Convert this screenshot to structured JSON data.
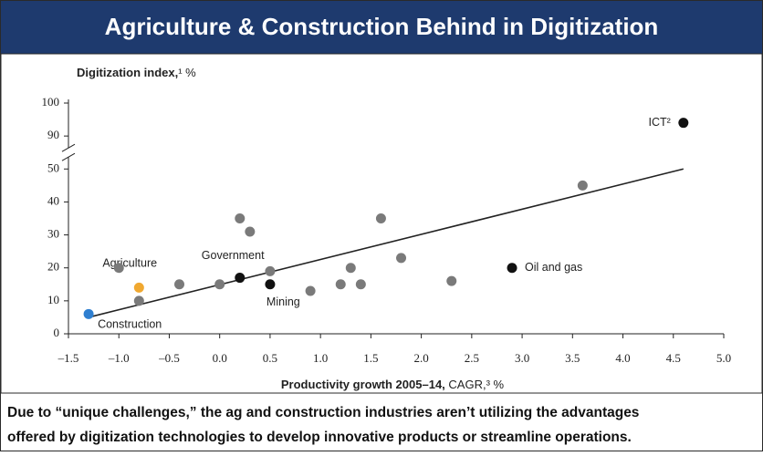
{
  "chart_data": {
    "type": "scatter",
    "title": "Agriculture & Construction Behind in Digitization",
    "ylabel": {
      "bold": "Digitization index,",
      "rest": "¹ %"
    },
    "xlabel": {
      "bold": "Productivity growth 2005–14,",
      "rest": " CAGR,³ %"
    },
    "caption": [
      "Due to “unique challenges,” the ag and construction industries aren’t utilizing the advantages",
      "offered by digitization technologies to develop innovative products or streamline operations."
    ],
    "x": [
      -1.3,
      -0.8,
      -1.0,
      -0.8,
      -0.4,
      0.0,
      0.2,
      0.3,
      0.2,
      0.5,
      0.5,
      0.9,
      1.2,
      1.3,
      1.4,
      1.6,
      1.8,
      2.3,
      2.9,
      3.6,
      4.6
    ],
    "values": [
      6,
      14,
      20,
      10,
      15,
      15,
      35,
      31,
      17,
      19,
      15,
      13,
      15,
      20,
      15,
      35,
      23,
      16,
      20,
      45,
      94
    ],
    "colors": [
      "#2f7fd0",
      "#f0a830",
      "#7a7a7a",
      "#7a7a7a",
      "#7a7a7a",
      "#7a7a7a",
      "#7a7a7a",
      "#7a7a7a",
      "#111111",
      "#7a7a7a",
      "#111111",
      "#7a7a7a",
      "#7a7a7a",
      "#7a7a7a",
      "#7a7a7a",
      "#7a7a7a",
      "#7a7a7a",
      "#7a7a7a",
      "#111111",
      "#7a7a7a",
      "#111111"
    ],
    "labels": [
      "Construction",
      "Agriculture",
      null,
      null,
      null,
      null,
      null,
      null,
      "Government",
      null,
      "Mining",
      null,
      null,
      null,
      null,
      null,
      null,
      null,
      "Oil and gas",
      null,
      "ICT²"
    ],
    "trendline": {
      "x": [
        -1.3,
        4.6
      ],
      "y": [
        5,
        52
      ]
    },
    "xlim": [
      -1.5,
      5.0
    ],
    "xticks": [
      {
        "value": -1.5,
        "label": "–1.5"
      },
      {
        "value": -1.0,
        "label": "–1.0"
      },
      {
        "value": -0.5,
        "label": "–0.5"
      },
      {
        "value": 0,
        "label": "0.0"
      },
      0.5,
      {
        "value": 1,
        "label": "1.0"
      },
      1.5,
      {
        "value": 2,
        "label": "2.0"
      },
      2.5,
      {
        "value": 3,
        "label": "3.0"
      },
      3.5,
      {
        "value": 4,
        "label": "4.0"
      },
      4.5,
      {
        "value": 5,
        "label": "5.0"
      }
    ],
    "ylim": [
      0,
      100
    ],
    "yticks": [
      0,
      10,
      20,
      30,
      40,
      50,
      90,
      100
    ],
    "axis_break": [
      50,
      80
    ]
  }
}
